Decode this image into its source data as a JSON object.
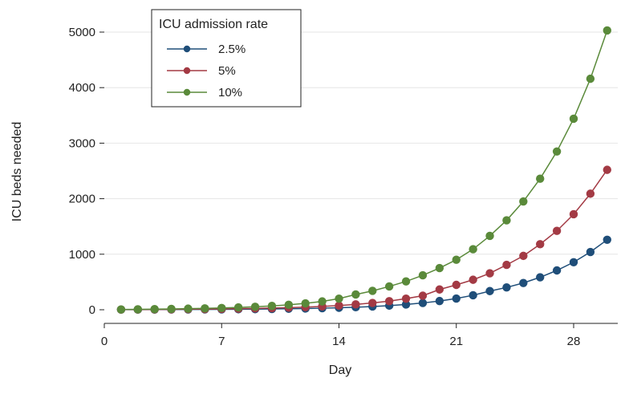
{
  "chart_data": {
    "type": "line",
    "title": "",
    "xlabel": "Day",
    "ylabel": "ICU beds needed",
    "xlim": [
      0,
      30
    ],
    "ylim": [
      0,
      5000
    ],
    "xticks": [
      0,
      7,
      14,
      21,
      28
    ],
    "yticks": [
      0,
      1000,
      2000,
      3000,
      4000,
      5000
    ],
    "grid": "horizontal",
    "legend": {
      "title": "ICU admission rate",
      "position": "top-left"
    },
    "x": [
      1,
      2,
      3,
      4,
      5,
      6,
      7,
      8,
      9,
      10,
      11,
      12,
      13,
      14,
      15,
      16,
      17,
      18,
      19,
      20,
      21,
      22,
      23,
      24,
      25,
      26,
      27,
      28,
      29,
      30
    ],
    "series": [
      {
        "name": "2.5%",
        "color": "#1f4e79",
        "values": [
          2,
          2,
          3,
          4,
          5,
          6,
          7,
          9,
          11,
          14,
          18,
          22,
          28,
          36,
          46,
          58,
          74,
          95,
          122,
          157,
          202,
          261,
          336,
          402,
          482,
          585,
          708,
          856,
          1040,
          1260
        ]
      },
      {
        "name": "5%",
        "color": "#a33a44",
        "values": [
          3,
          4,
          6,
          8,
          10,
          12,
          15,
          19,
          24,
          30,
          38,
          47,
          60,
          75,
          96,
          122,
          155,
          200,
          253,
          365,
          448,
          540,
          656,
          808,
          970,
          1180,
          1420,
          1720,
          2090,
          2520
        ]
      },
      {
        "name": "10%",
        "color": "#5a8a3a",
        "values": [
          5,
          8,
          11,
          15,
          20,
          25,
          32,
          42,
          54,
          69,
          89,
          115,
          150,
          200,
          275,
          340,
          420,
          510,
          620,
          750,
          900,
          1090,
          1330,
          1610,
          1950,
          2360,
          2850,
          3440,
          4160,
          5030
        ]
      }
    ]
  }
}
